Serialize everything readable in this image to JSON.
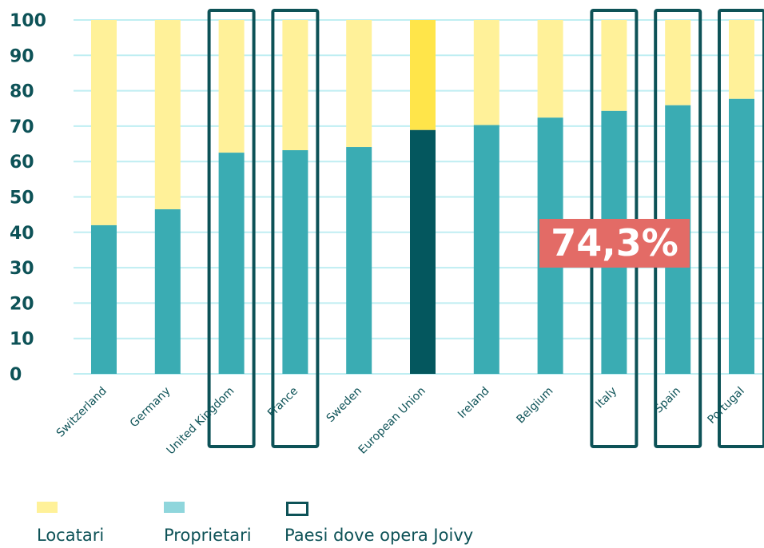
{
  "chart_data": {
    "type": "bar",
    "stacked": true,
    "categories": [
      "Switzerland",
      "Germany",
      "United Kingdom",
      "France",
      "Sweden",
      "European Union",
      "Ireland",
      "Belgium",
      "Italy",
      "Spain",
      "Portugal"
    ],
    "series": [
      {
        "name": "Proprietari",
        "values": [
          42,
          46.5,
          62.5,
          63.2,
          64.1,
          68.9,
          70.3,
          72.4,
          74.3,
          75.9,
          77.7
        ]
      },
      {
        "name": "Locatari",
        "values": [
          58,
          53.5,
          37.5,
          36.8,
          35.9,
          31.1,
          29.7,
          27.6,
          25.7,
          24.1,
          22.3
        ]
      }
    ],
    "highlighted": [
      "United Kingdom",
      "France",
      "Italy",
      "Spain",
      "Portugal"
    ],
    "emphasized_category": "European Union",
    "yticks": [
      0,
      10,
      20,
      30,
      40,
      50,
      60,
      70,
      80,
      90,
      100
    ],
    "ylim": [
      0,
      100
    ],
    "grid": true,
    "colors": {
      "proprietari": "#3aacb3",
      "locatari": "#fff199",
      "eu_proprietari": "#04575e",
      "eu_locatari": "#ffe54a",
      "highlight_box": "#0d5257",
      "grid": "#bfeef2",
      "text": "#0d5257",
      "callout_bg": "#e36b66"
    },
    "callout": {
      "text": "74,3%",
      "category": "Italy"
    }
  },
  "legend": {
    "items": [
      {
        "label": "Locatari",
        "color": "#fff199"
      },
      {
        "label": "Proprietari",
        "color": "#8fd6dc"
      },
      {
        "label": "Paesi dove opera Joivy",
        "color": "#0d5257"
      }
    ]
  }
}
